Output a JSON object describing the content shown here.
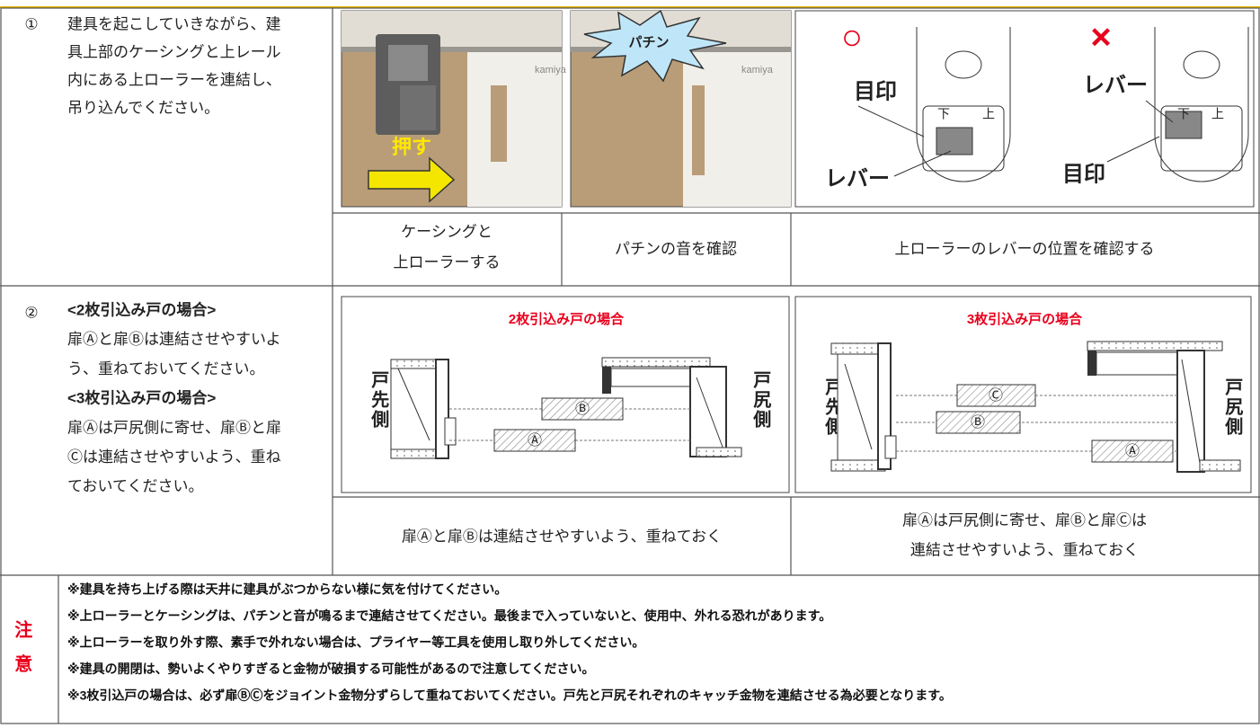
{
  "step1": {
    "number": "①",
    "lines": [
      "建具を起こしていきながら、建",
      "具上部のケーシングと上レール",
      "内にある上ローラーを連結し、",
      "吊り込んでください。"
    ],
    "photo_push": "押す",
    "photo_brand": "kamiya",
    "photo_click": "パチン",
    "mark_ok": "○",
    "mark_ng": "×",
    "mark_label": "目印",
    "lever_label": "レバー",
    "down": "下",
    "up": "上",
    "captions": [
      [
        "ケーシングと",
        "上ローラーする"
      ],
      [
        "パチンの音を確認"
      ],
      [
        "上ローラーのレバーの位置を確認する"
      ]
    ]
  },
  "step2": {
    "number": "②",
    "lines": [
      {
        "text": "<2枚引込み戸の場合>",
        "bold": true
      },
      {
        "text": "扉Ⓐと扉Ⓑは連結させやすいよ",
        "bold": false
      },
      {
        "text": "う、重ねておいてください。",
        "bold": false
      },
      {
        "text": "<3枚引込み戸の場合>",
        "bold": true
      },
      {
        "text": "扉Ⓐは戸尻側に寄せ、扉Ⓑと扉",
        "bold": false
      },
      {
        "text": "Ⓒは連結させやすいよう、重ね",
        "bold": false
      },
      {
        "text": "ておいてください。",
        "bold": false
      }
    ],
    "diagrams": [
      {
        "title": "2枚引込み戸の場合",
        "left": "戸先側",
        "right": "戸尻側",
        "doors": [
          "Ⓐ",
          "Ⓑ"
        ]
      },
      {
        "title": "3枚引込み戸の場合",
        "left": "戸先側",
        "right": "戸尻側",
        "doors": [
          "Ⓐ",
          "Ⓑ",
          "Ⓒ"
        ]
      }
    ],
    "captions": [
      [
        "扉Ⓐと扉Ⓑは連結させやすいよう、重ねておく"
      ],
      [
        "扉Ⓐは戸尻側に寄せ、扉Ⓑと扉Ⓒは",
        "連結させやすいよう、重ねておく"
      ]
    ]
  },
  "notes": {
    "heading": "注意",
    "items": [
      "※建具を持ち上げる際は天井に建具がぶつからない様に気を付けてください。",
      "※上ローラーとケーシングは、パチンと音が鳴るまで連結させてください。最後まで入っていないと、使用中、外れる恐れがあります。",
      "※上ローラーを取り外す際、素手で外れない場合は、プライヤー等工具を使用し取り外してください。",
      "※建具の開閉は、勢いよくやりすぎると金物が破損する可能性があるので注意してください。",
      "※3枚引込戸の場合は、必ず扉ⒷⒸをジョイント金物分ずらして重ねておいてください。戸先と戸尻それぞれのキャッチ金物を連結させる為必要となります。"
    ]
  }
}
